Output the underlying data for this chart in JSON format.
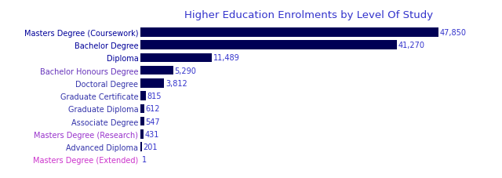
{
  "title": "Higher Education Enrolments by Level Of Study",
  "title_color": "#3333cc",
  "title_fontsize": 9.5,
  "categories": [
    "Masters Degree (Coursework)",
    "Bachelor Degree",
    "Diploma",
    "Bachelor Honours Degree",
    "Doctoral Degree",
    "Graduate Certificate",
    "Graduate Diploma",
    "Associate Degree",
    "Masters Degree (Research)",
    "Advanced Diploma",
    "Masters Degree (Extended)"
  ],
  "values": [
    47850,
    41270,
    11489,
    5290,
    3812,
    815,
    612,
    547,
    431,
    201,
    1
  ],
  "labels": [
    "47,850",
    "41,270",
    "11,489",
    "5,290",
    "3,812",
    "815",
    "612",
    "547",
    "431",
    "201",
    "1"
  ],
  "bar_color": "#000055",
  "label_color": "#3333cc",
  "cat_label_colors": [
    "#000099",
    "#000099",
    "#000099",
    "#6633bb",
    "#3333aa",
    "#3333aa",
    "#3333aa",
    "#3333aa",
    "#9933cc",
    "#3333aa",
    "#cc33cc"
  ],
  "background_color": "#ffffff",
  "label_fontsize": 7,
  "category_fontsize": 7,
  "figsize": [
    6.4,
    2.28
  ],
  "dpi": 100
}
